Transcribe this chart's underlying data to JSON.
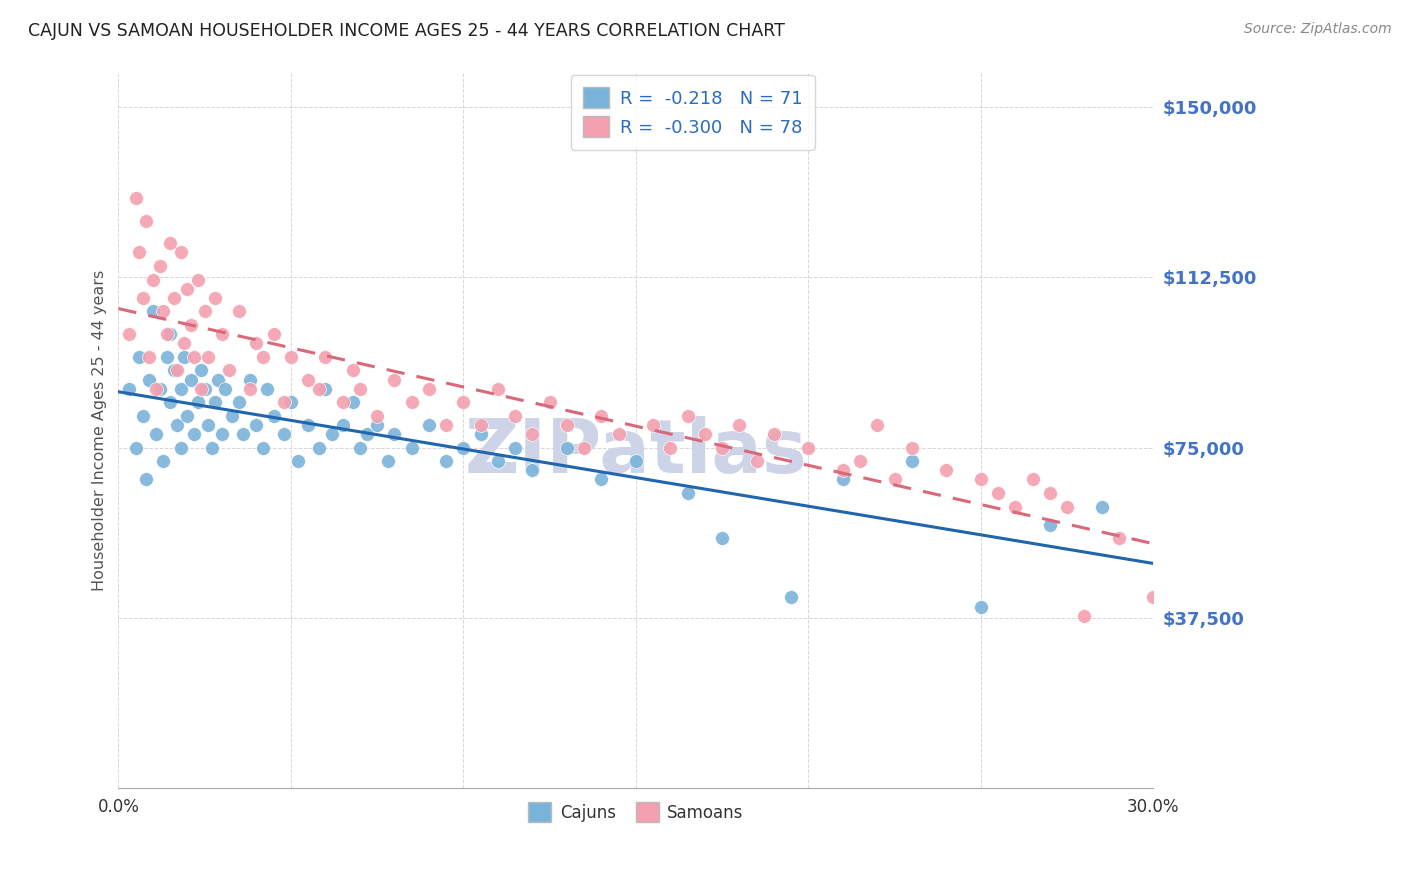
{
  "title": "CAJUN VS SAMOAN HOUSEHOLDER INCOME AGES 25 - 44 YEARS CORRELATION CHART",
  "source": "Source: ZipAtlas.com",
  "ylabel": "Householder Income Ages 25 - 44 years",
  "xlim": [
    0.0,
    0.3
  ],
  "ylim": [
    0,
    157500
  ],
  "yticks": [
    0,
    37500,
    75000,
    112500,
    150000
  ],
  "ytick_labels": [
    "",
    "$37,500",
    "$75,000",
    "$112,500",
    "$150,000"
  ],
  "xticks": [
    0.0,
    0.05,
    0.1,
    0.15,
    0.2,
    0.25,
    0.3
  ],
  "xtick_labels": [
    "0.0%",
    "",
    "",
    "",
    "",
    "",
    "30.0%"
  ],
  "cajun_R": -0.218,
  "cajun_N": 71,
  "samoan_R": -0.3,
  "samoan_N": 78,
  "blue_color": "#7ab3d9",
  "pink_color": "#f4a0b0",
  "line_blue": "#2166ac",
  "line_pink": "#d9687a",
  "title_color": "#222222",
  "axis_label_color": "#555555",
  "tick_color": "#4472C4",
  "grid_color": "#cccccc",
  "watermark_color": "#cdd4e8",
  "cajun_points_x": [
    0.003,
    0.005,
    0.006,
    0.007,
    0.008,
    0.009,
    0.01,
    0.011,
    0.012,
    0.013,
    0.014,
    0.015,
    0.015,
    0.016,
    0.017,
    0.018,
    0.018,
    0.019,
    0.02,
    0.021,
    0.022,
    0.023,
    0.024,
    0.025,
    0.026,
    0.027,
    0.028,
    0.029,
    0.03,
    0.031,
    0.033,
    0.035,
    0.036,
    0.038,
    0.04,
    0.042,
    0.043,
    0.045,
    0.048,
    0.05,
    0.052,
    0.055,
    0.058,
    0.06,
    0.062,
    0.065,
    0.068,
    0.07,
    0.072,
    0.075,
    0.078,
    0.08,
    0.085,
    0.09,
    0.095,
    0.1,
    0.105,
    0.11,
    0.115,
    0.12,
    0.13,
    0.14,
    0.15,
    0.165,
    0.175,
    0.195,
    0.21,
    0.23,
    0.25,
    0.27,
    0.285
  ],
  "cajun_points_y": [
    88000,
    75000,
    95000,
    82000,
    68000,
    90000,
    105000,
    78000,
    88000,
    72000,
    95000,
    100000,
    85000,
    92000,
    80000,
    88000,
    75000,
    95000,
    82000,
    90000,
    78000,
    85000,
    92000,
    88000,
    80000,
    75000,
    85000,
    90000,
    78000,
    88000,
    82000,
    85000,
    78000,
    90000,
    80000,
    75000,
    88000,
    82000,
    78000,
    85000,
    72000,
    80000,
    75000,
    88000,
    78000,
    80000,
    85000,
    75000,
    78000,
    80000,
    72000,
    78000,
    75000,
    80000,
    72000,
    75000,
    78000,
    72000,
    75000,
    70000,
    75000,
    68000,
    72000,
    65000,
    55000,
    42000,
    68000,
    72000,
    40000,
    58000,
    62000
  ],
  "samoan_points_x": [
    0.003,
    0.005,
    0.006,
    0.007,
    0.008,
    0.009,
    0.01,
    0.011,
    0.012,
    0.013,
    0.014,
    0.015,
    0.016,
    0.017,
    0.018,
    0.019,
    0.02,
    0.021,
    0.022,
    0.023,
    0.024,
    0.025,
    0.026,
    0.028,
    0.03,
    0.032,
    0.035,
    0.038,
    0.04,
    0.042,
    0.045,
    0.048,
    0.05,
    0.055,
    0.058,
    0.06,
    0.065,
    0.068,
    0.07,
    0.075,
    0.08,
    0.085,
    0.09,
    0.095,
    0.1,
    0.105,
    0.11,
    0.115,
    0.12,
    0.125,
    0.13,
    0.135,
    0.14,
    0.145,
    0.155,
    0.16,
    0.165,
    0.17,
    0.175,
    0.18,
    0.185,
    0.19,
    0.2,
    0.21,
    0.215,
    0.22,
    0.225,
    0.23,
    0.24,
    0.25,
    0.255,
    0.26,
    0.265,
    0.27,
    0.275,
    0.28,
    0.29,
    0.3
  ],
  "samoan_points_y": [
    100000,
    130000,
    118000,
    108000,
    125000,
    95000,
    112000,
    88000,
    115000,
    105000,
    100000,
    120000,
    108000,
    92000,
    118000,
    98000,
    110000,
    102000,
    95000,
    112000,
    88000,
    105000,
    95000,
    108000,
    100000,
    92000,
    105000,
    88000,
    98000,
    95000,
    100000,
    85000,
    95000,
    90000,
    88000,
    95000,
    85000,
    92000,
    88000,
    82000,
    90000,
    85000,
    88000,
    80000,
    85000,
    80000,
    88000,
    82000,
    78000,
    85000,
    80000,
    75000,
    82000,
    78000,
    80000,
    75000,
    82000,
    78000,
    75000,
    80000,
    72000,
    78000,
    75000,
    70000,
    72000,
    80000,
    68000,
    75000,
    70000,
    68000,
    65000,
    62000,
    68000,
    65000,
    62000,
    38000,
    55000,
    42000
  ]
}
